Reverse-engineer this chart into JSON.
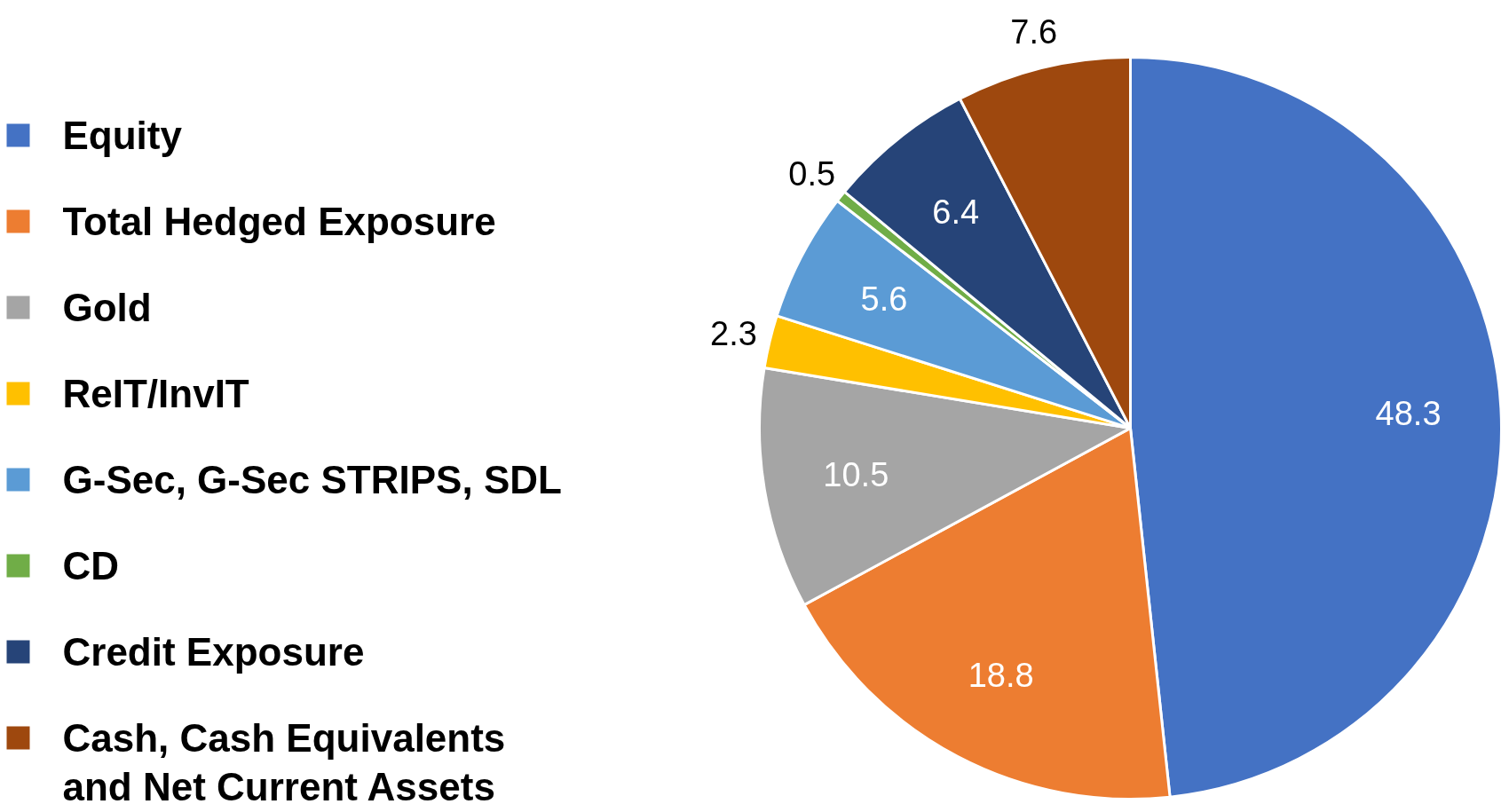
{
  "chart_data": {
    "type": "pie",
    "categories": [
      "Equity",
      "Total Hedged Exposure",
      "Gold",
      "ReIT/InvIT",
      "G-Sec, G-Sec STRIPS, SDL",
      "CD",
      "Credit Exposure",
      "Cash, Cash Equivalents and Net Current Assets"
    ],
    "values": [
      48.3,
      18.8,
      10.5,
      2.3,
      5.6,
      0.5,
      6.4,
      7.6
    ],
    "colors": [
      "#4472c4",
      "#ed7d31",
      "#a5a5a5",
      "#ffc000",
      "#5b9bd5",
      "#70ad47",
      "#264478",
      "#9e480e"
    ],
    "data_labels": true,
    "legend": "left"
  }
}
